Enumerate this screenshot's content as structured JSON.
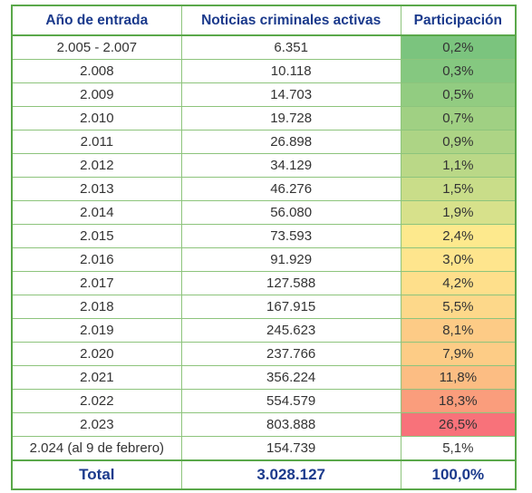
{
  "table": {
    "header": [
      "Año de entrada",
      "Noticias criminales activas",
      "Participación"
    ],
    "rows": [
      [
        "2.005 - 2.007",
        "6.351",
        "0,2%"
      ],
      [
        "2.008",
        "10.118",
        "0,3%"
      ],
      [
        "2.009",
        "14.703",
        "0,5%"
      ],
      [
        "2.010",
        "19.728",
        "0,7%"
      ],
      [
        "2.011",
        "26.898",
        "0,9%"
      ],
      [
        "2.012",
        "34.129",
        "1,1%"
      ],
      [
        "2.013",
        "46.276",
        "1,5%"
      ],
      [
        "2.014",
        "56.080",
        "1,9%"
      ],
      [
        "2.015",
        "73.593",
        "2,4%"
      ],
      [
        "2.016",
        "91.929",
        "3,0%"
      ],
      [
        "2.017",
        "127.588",
        "4,2%"
      ],
      [
        "2.018",
        "167.915",
        "5,5%"
      ],
      [
        "2.019",
        "245.623",
        "8,1%"
      ],
      [
        "2.020",
        "237.766",
        "7,9%"
      ],
      [
        "2.021",
        "356.224",
        "11,8%"
      ],
      [
        "2.022",
        "554.579",
        "18,3%"
      ],
      [
        "2.023",
        "803.888",
        "26,5%"
      ],
      [
        "2.024 (al 9 de febrero)",
        "154.739",
        "5,1%"
      ]
    ],
    "row_colors": [
      "#7bc47e",
      "#85c880",
      "#92cc81",
      "#a0d083",
      "#add485",
      "#bad887",
      "#c9dd89",
      "#d7e18b",
      "#fde98d",
      "#fee58d",
      "#fedf8b",
      "#fdd88a",
      "#fdcb86",
      "#fdcc86",
      "#fcbd83",
      "#fa9d7c",
      "#f8727a",
      "#ffffff"
    ],
    "total": [
      "Total",
      "3.028.127",
      "100,0%"
    ]
  }
}
